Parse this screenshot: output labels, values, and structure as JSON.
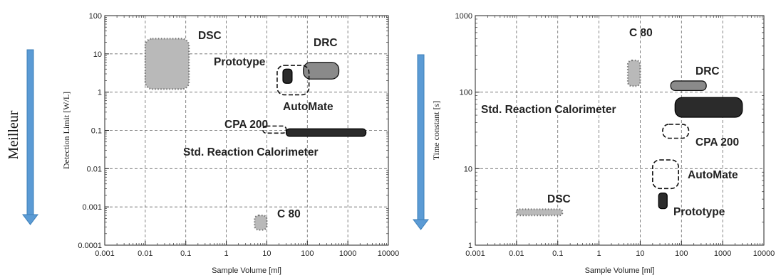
{
  "side_label": "Meilleur",
  "colors": {
    "arrow": "#5b9bd5",
    "arrow_edge": "#3d7fb8",
    "grid": "#666666",
    "light": "#b9b9b9",
    "medium": "#8a8a8a",
    "dark": "#2b2b2b"
  },
  "chart_data": [
    {
      "type": "scatter",
      "xlabel": "Sample Volume [ml]",
      "ylabel": "Detection Limit [W/L]",
      "xscale": "log",
      "yscale": "log",
      "xlim": [
        0.001,
        10000
      ],
      "ylim": [
        0.0001,
        100
      ],
      "xticks": [
        "0.001",
        "0.01",
        "0.1",
        "1",
        "10",
        "100",
        "1000",
        "10000"
      ],
      "yticks": [
        "0.0001",
        "0.001",
        "0.01",
        "0.1",
        "1",
        "10",
        "100"
      ],
      "grid": true,
      "regions": [
        {
          "label": "DSC",
          "x": [
            0.01,
            0.12
          ],
          "y": [
            1.2,
            25
          ],
          "style": "light-dotted"
        },
        {
          "label": "DRC",
          "x": [
            80,
            600
          ],
          "y": [
            2.2,
            6
          ],
          "style": "medium-solid"
        },
        {
          "label": "Prototype",
          "x": [
            25,
            42
          ],
          "y": [
            1.7,
            4
          ],
          "style": "dark-solid"
        },
        {
          "label": "AutoMate",
          "x": [
            18,
            110
          ],
          "y": [
            0.85,
            5
          ],
          "style": "dashed-outline"
        },
        {
          "label": "CPA 200",
          "x": [
            8,
            30
          ],
          "y": [
            0.085,
            0.13
          ],
          "style": "dashed-outline"
        },
        {
          "label": "Std. Reaction Calorimeter",
          "x": [
            30,
            2800
          ],
          "y": [
            0.07,
            0.11
          ],
          "style": "dark-solid"
        },
        {
          "label": "C 80",
          "x": [
            5,
            10
          ],
          "y": [
            0.00025,
            0.0006
          ],
          "style": "light-dotted"
        }
      ]
    },
    {
      "type": "scatter",
      "xlabel": "Sample Volume [ml]",
      "ylabel": "Time constant [s]",
      "xscale": "log",
      "yscale": "log",
      "xlim": [
        0.001,
        10000
      ],
      "ylim": [
        1,
        1000
      ],
      "xticks": [
        "0.001",
        "0.01",
        "0.1",
        "1",
        "10",
        "100",
        "1000",
        "10000"
      ],
      "yticks": [
        "1",
        "10",
        "100",
        "1000"
      ],
      "grid": true,
      "regions": [
        {
          "label": "C 80",
          "x": [
            5,
            10
          ],
          "y": [
            120,
            260
          ],
          "style": "light-dotted"
        },
        {
          "label": "DRC",
          "x": [
            55,
            400
          ],
          "y": [
            105,
            140
          ],
          "style": "medium-solid"
        },
        {
          "label": "Std. Reaction Calorimeter",
          "x": [
            70,
            3000
          ],
          "y": [
            47,
            85
          ],
          "style": "dark-solid"
        },
        {
          "label": "CPA 200",
          "x": [
            35,
            150
          ],
          "y": [
            25,
            38
          ],
          "style": "dashed-outline"
        },
        {
          "label": "AutoMate",
          "x": [
            20,
            85
          ],
          "y": [
            5.5,
            13
          ],
          "style": "dashed-outline"
        },
        {
          "label": "DSC",
          "x": [
            0.01,
            0.13
          ],
          "y": [
            2.45,
            2.95
          ],
          "style": "light-dotted"
        },
        {
          "label": "Prototype",
          "x": [
            28,
            45
          ],
          "y": [
            3,
            4.8
          ],
          "style": "dark-solid"
        }
      ]
    }
  ]
}
